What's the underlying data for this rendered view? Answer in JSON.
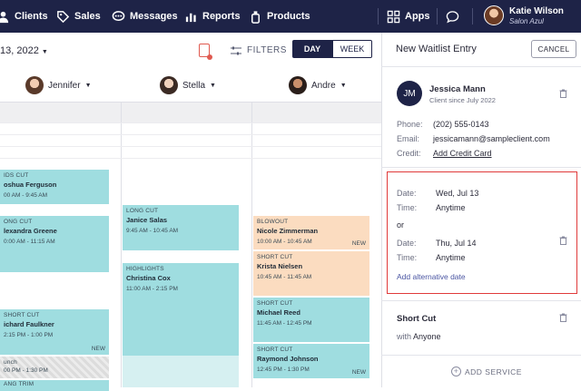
{
  "nav": {
    "items": [
      {
        "label": "Clients",
        "icon": "user-icon"
      },
      {
        "label": "Sales",
        "icon": "tag-icon"
      },
      {
        "label": "Messages",
        "icon": "chat-icon"
      },
      {
        "label": "Reports",
        "icon": "bar-chart-icon"
      },
      {
        "label": "Products",
        "icon": "bottle-icon"
      }
    ],
    "apps_label": "Apps",
    "user_name": "Katie Wilson",
    "user_org": "Salon Azul"
  },
  "calendar": {
    "date_label": "13, 2022",
    "filters_label": "FILTERS",
    "view_day": "DAY",
    "view_week": "WEEK",
    "staff": [
      "Jennifer",
      "Stella",
      "Andre"
    ],
    "appointments": [
      {
        "service": "IDS CUT",
        "client": "oshua Ferguson",
        "time": "00 AM - 9:45 AM",
        "new": ""
      },
      {
        "service": "ONG CUT",
        "client": "lexandra Greene",
        "time": "0:00 AM - 11:15 AM",
        "new": ""
      },
      {
        "service": "SHORT CUT",
        "client": "ichard Faulkner",
        "time": "2:15 PM - 1:00 PM",
        "new": "NEW"
      },
      {
        "service": "unch",
        "client": "",
        "time": "00 PM - 1:30 PM",
        "new": ""
      },
      {
        "service": "ANG TRIM",
        "client": "",
        "time": "",
        "new": ""
      },
      {
        "service": "LONG CUT",
        "client": "Janice Salas",
        "time": "9:45 AM - 10:45 AM",
        "new": ""
      },
      {
        "service": "HIGHLIGHTS",
        "client": "Christina Cox",
        "time": "11:00 AM - 2:15 PM",
        "new": ""
      },
      {
        "service": "BLOWOUT",
        "client": "Nicole Zimmerman",
        "time": "10:00 AM - 10:45 AM",
        "new": "NEW"
      },
      {
        "service": "SHORT CUT",
        "client": "Krista Nielsen",
        "time": "10:45 AM - 11:45 AM",
        "new": ""
      },
      {
        "service": "SHORT CUT",
        "client": "Michael Reed",
        "time": "11:45 AM - 12:45 PM",
        "new": ""
      },
      {
        "service": "SHORT CUT",
        "client": "Raymond Johnson",
        "time": "12:45 PM - 1:30 PM",
        "new": "NEW"
      }
    ]
  },
  "panel": {
    "title": "New Waitlist Entry",
    "cancel": "CANCEL",
    "client": {
      "initials": "JM",
      "name": "Jessica Mann",
      "since": "Client since July 2022",
      "phone_label": "Phone:",
      "phone": "(202) 555-0143",
      "email_label": "Email:",
      "email": "jessicamann@sampleclient.com",
      "credit_label": "Credit:",
      "credit": "Add Credit Card"
    },
    "dates": [
      {
        "date_label": "Date:",
        "date": "Wed, Jul 13",
        "time_label": "Time:",
        "time": "Anytime"
      },
      {
        "date_label": "Date:",
        "date": "Thu, Jul 14",
        "time_label": "Time:",
        "time": "Anytime"
      }
    ],
    "or_label": "or",
    "add_alt_date": "Add alternative date",
    "service": {
      "name": "Short Cut",
      "with_label": "with",
      "with": "Anyone"
    },
    "add_service": "ADD SERVICE"
  }
}
